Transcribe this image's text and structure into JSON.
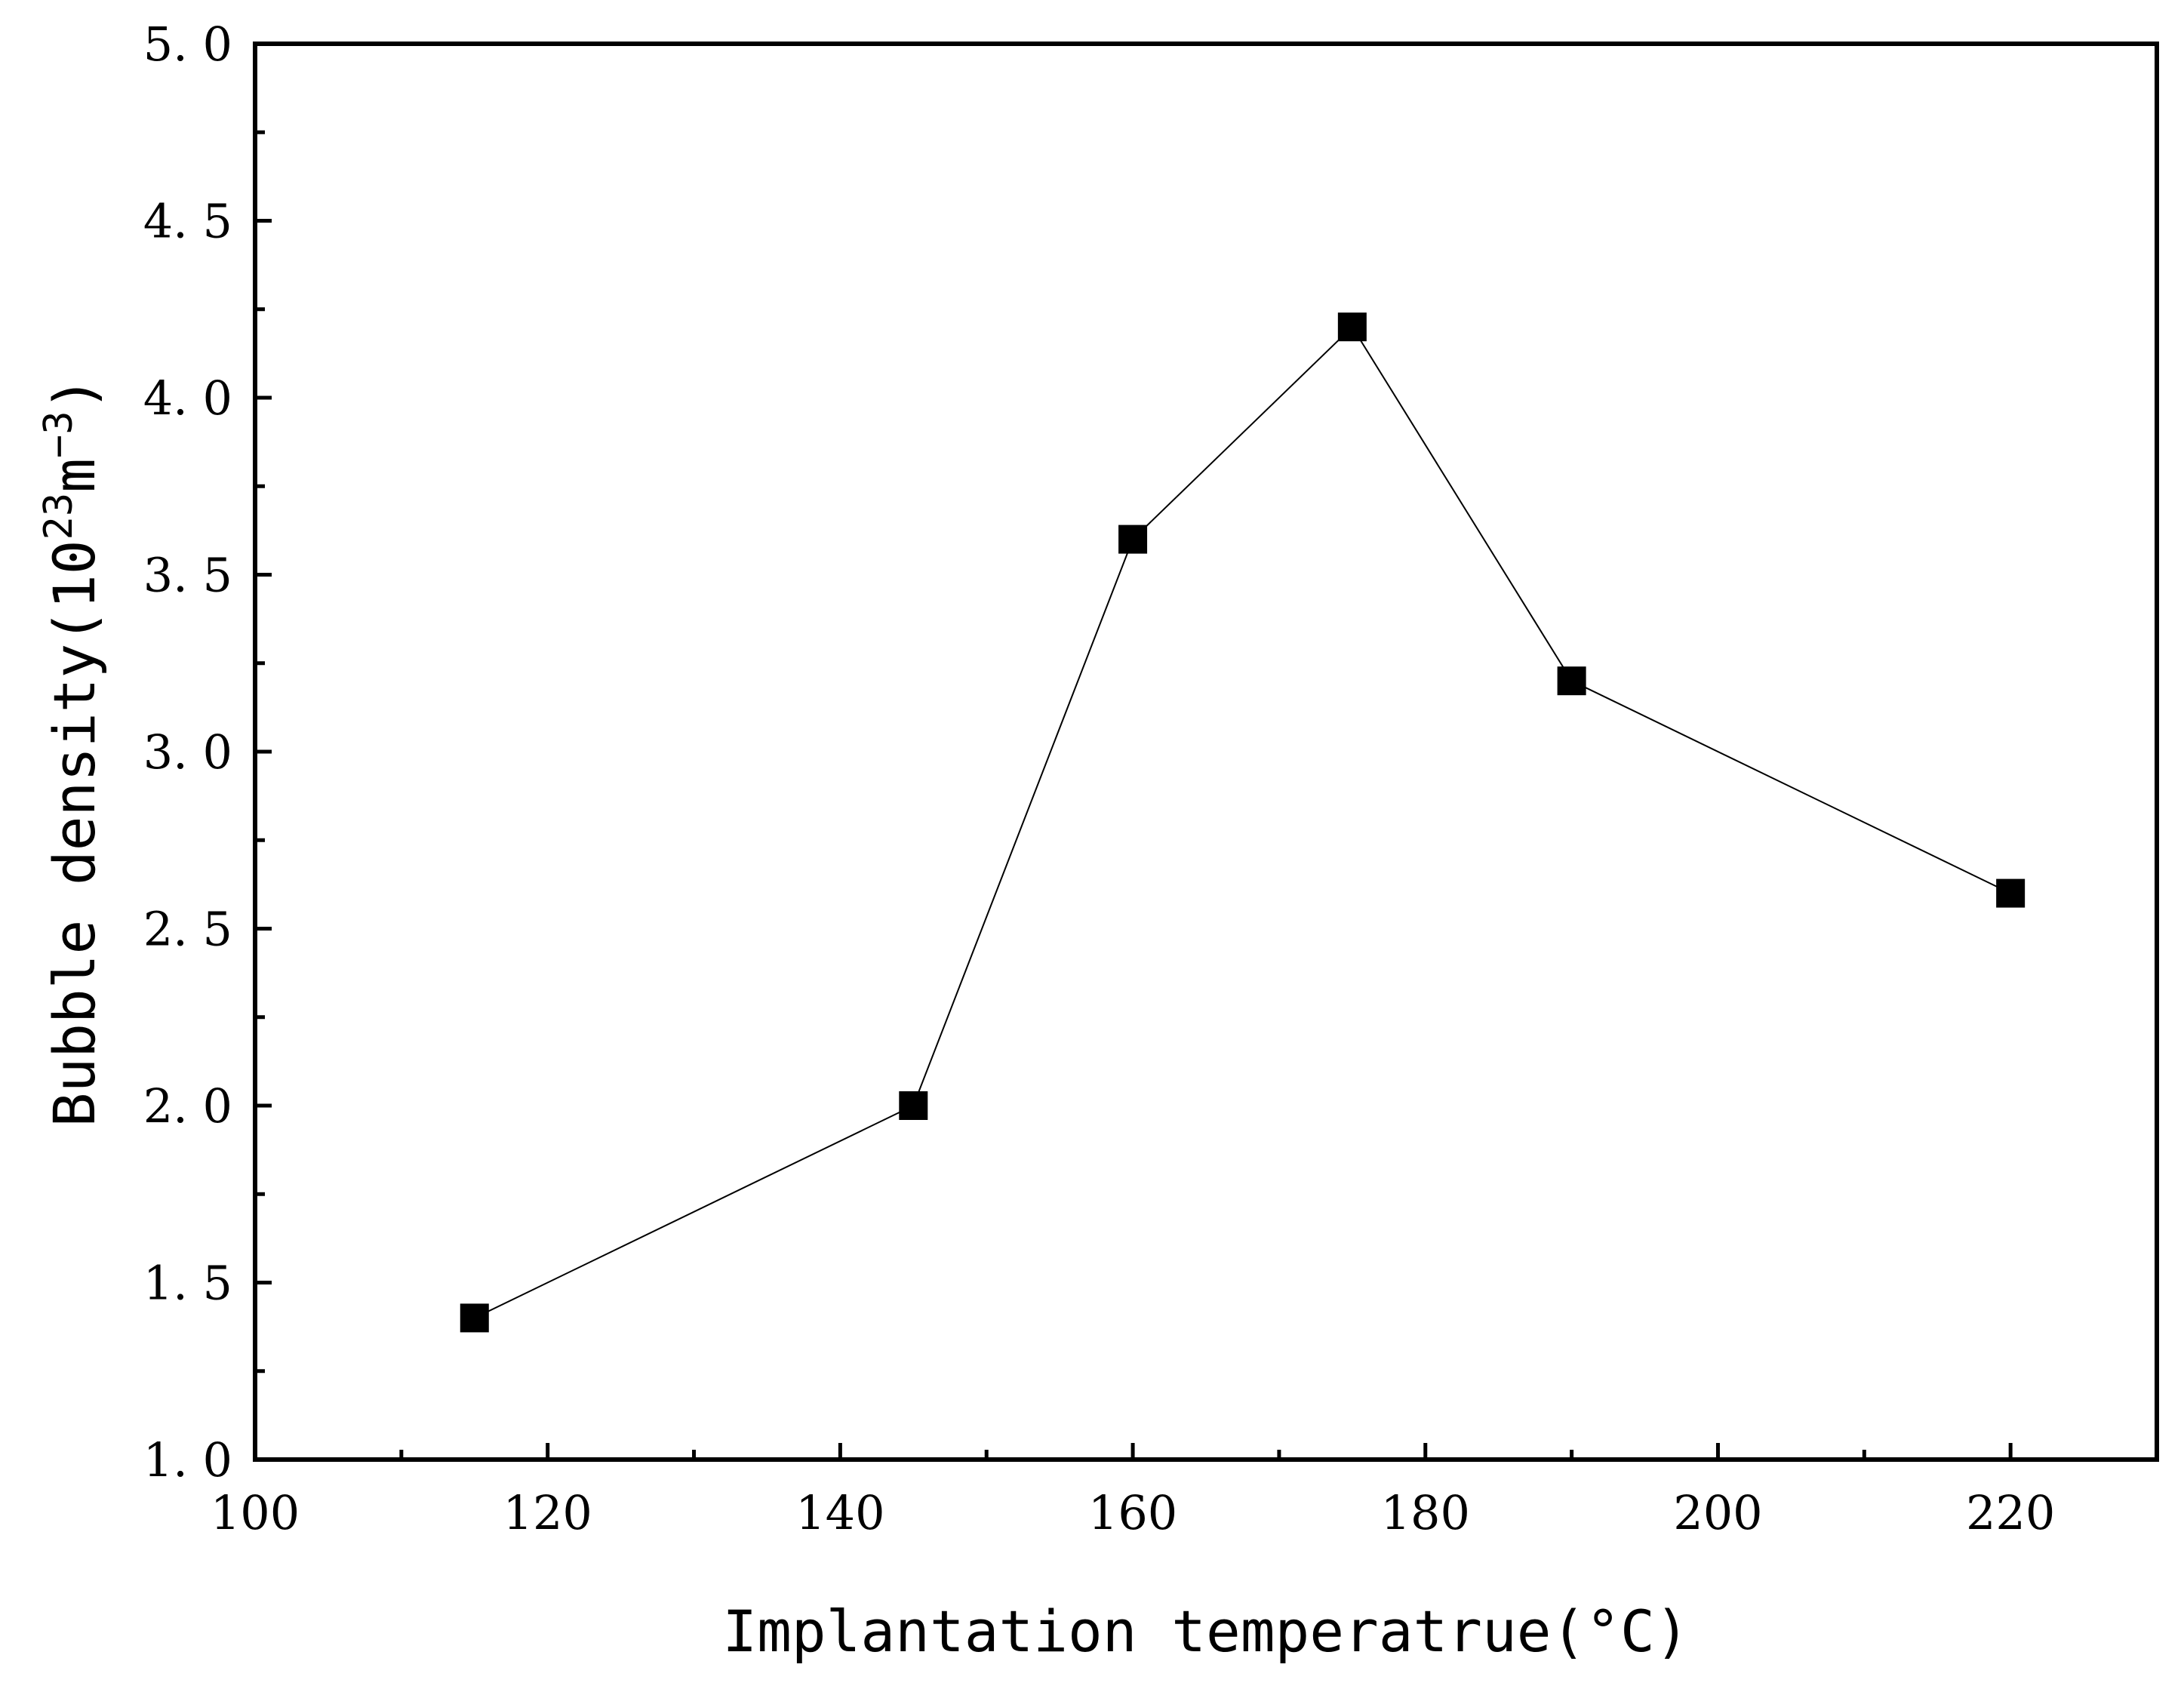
{
  "chart_data": {
    "type": "line",
    "title": "",
    "xlabel": "Implantation temperatrue(°C)",
    "ylabel": {
      "prefix": "Bubble density(10",
      "exp1": "23",
      "mid": "m",
      "exp2": "−3",
      "suffix": ")"
    },
    "xlim": [
      100,
      230
    ],
    "ylim": [
      1.0,
      5.0
    ],
    "x_ticks": [
      100,
      120,
      140,
      160,
      180,
      200,
      220
    ],
    "x_tick_labels": [
      "100",
      "120",
      "140",
      "160",
      "180",
      "200",
      "220"
    ],
    "y_ticks": [
      1.0,
      1.5,
      2.0,
      2.5,
      3.0,
      3.5,
      4.0,
      4.5,
      5.0
    ],
    "y_tick_labels": [
      "1. 0",
      "1. 5",
      "2. 0",
      "2. 5",
      "3. 0",
      "3. 5",
      "4. 0",
      "4. 5",
      "5. 0"
    ],
    "x_minor_ticks": [
      110,
      130,
      150,
      170,
      190,
      210
    ],
    "y_minor_ticks": [
      1.25,
      1.75,
      2.25,
      2.75,
      3.25,
      3.75,
      4.25,
      4.75
    ],
    "grid": false,
    "series": [
      {
        "name": "Bubble density",
        "marker": "square",
        "color": "#000000",
        "x": [
          115,
          145,
          160,
          175,
          190,
          220
        ],
        "y": [
          1.4,
          2.0,
          3.6,
          4.2,
          3.2,
          2.6
        ]
      }
    ]
  }
}
